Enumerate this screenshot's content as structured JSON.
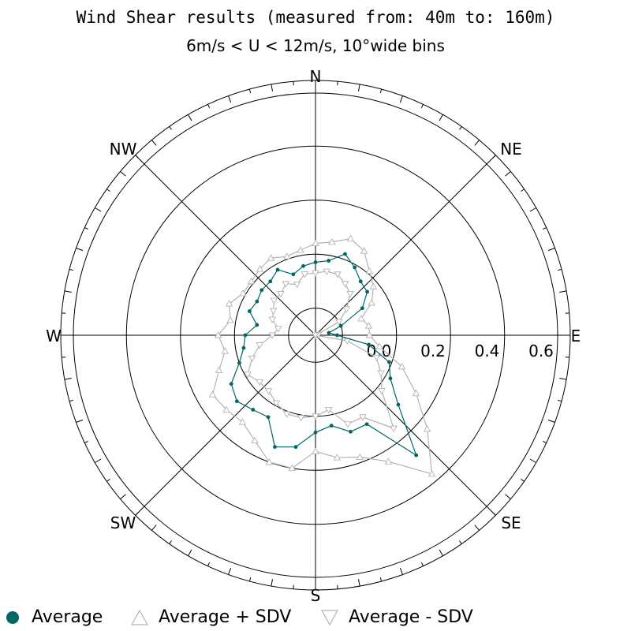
{
  "chart_data": {
    "type": "polar-line",
    "title": "Wind Shear results (measured from: 40m to: 160m)",
    "subtitle": "6m/s < U < 12m/s, 10°wide bins",
    "compass": [
      "N",
      "NE",
      "E",
      "SE",
      "S",
      "SW",
      "W",
      "NW"
    ],
    "radial_ticks": [
      "0.0",
      "0.2",
      "0.4",
      "0.6"
    ],
    "rmin": -0.2,
    "rmax": 0.6,
    "directions_deg": [
      0,
      10,
      20,
      30,
      40,
      50,
      60,
      70,
      80,
      90,
      100,
      110,
      120,
      130,
      140,
      150,
      160,
      170,
      180,
      190,
      200,
      210,
      220,
      230,
      240,
      250,
      260,
      270,
      280,
      290,
      300,
      310,
      320,
      330,
      340,
      350
    ],
    "series": [
      {
        "name": "Average",
        "color": "#006666",
        "marker": "circle",
        "values": [
          0.07,
          0.08,
          0.12,
          0.09,
          0.06,
          0.05,
          0.0,
          -0.1,
          -0.15,
          -0.12,
          0.0,
          0.09,
          0.12,
          0.2,
          0.38,
          0.18,
          0.18,
          0.14,
          0.16,
          0.22,
          0.24,
          0.15,
          0.16,
          0.18,
          0.16,
          0.1,
          0.07,
          0.06,
          0.02,
          0.06,
          0.05,
          0.06,
          0.06,
          0.08,
          0.04,
          0.06
        ]
      },
      {
        "name": "Average + SDV",
        "color": "#b3b3b3",
        "marker": "triangle-up",
        "values": [
          0.14,
          0.15,
          0.18,
          0.16,
          0.11,
          0.08,
          0.04,
          -0.02,
          0.0,
          0.0,
          0.04,
          0.14,
          0.23,
          0.34,
          0.47,
          0.34,
          0.28,
          0.26,
          0.23,
          0.3,
          0.3,
          0.25,
          0.22,
          0.23,
          0.24,
          0.18,
          0.14,
          0.16,
          0.12,
          0.14,
          0.11,
          0.11,
          0.12,
          0.13,
          0.11,
          0.12
        ]
      },
      {
        "name": "Average - SDV",
        "color": "#b3b3b3",
        "marker": "triangle-down",
        "values": [
          0.03,
          0.04,
          0.04,
          0.02,
          0.0,
          -0.05,
          -0.1,
          -0.19,
          -0.19,
          -0.2,
          -0.08,
          0.04,
          0.08,
          0.12,
          0.25,
          0.15,
          0.15,
          0.08,
          0.1,
          0.11,
          0.11,
          0.09,
          0.07,
          0.07,
          0.09,
          0.05,
          0.01,
          -0.04,
          -0.06,
          -0.03,
          -0.02,
          0.0,
          0.0,
          0.02,
          0.0,
          0.03
        ]
      }
    ],
    "legend_position": "bottom"
  },
  "legend": [
    "Average",
    "Average + SDV",
    "Average - SDV"
  ]
}
